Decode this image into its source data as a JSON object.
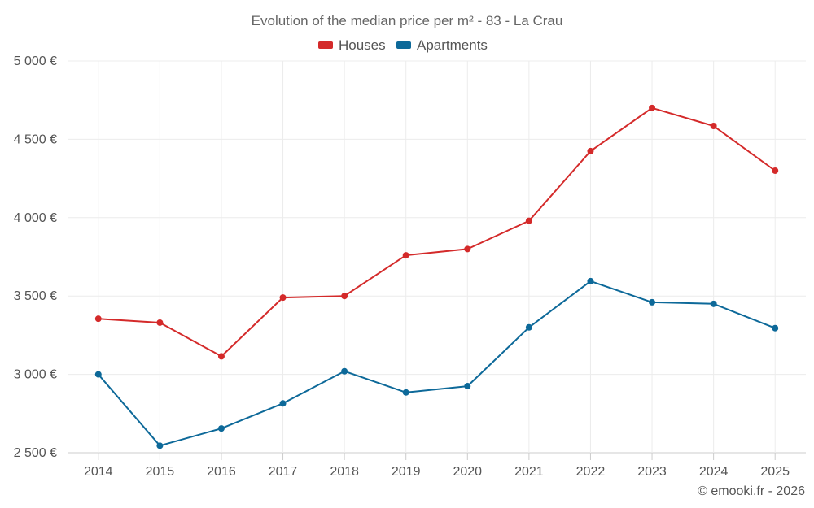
{
  "chart_data": {
    "type": "line",
    "title": "Evolution of the median price per m² - 83 - La Crau",
    "xlabel": "",
    "ylabel": "",
    "categories": [
      "2014",
      "2015",
      "2016",
      "2017",
      "2018",
      "2019",
      "2020",
      "2021",
      "2022",
      "2023",
      "2024",
      "2025"
    ],
    "ylim": [
      2500,
      5000
    ],
    "yticks": [
      2500,
      3000,
      3500,
      4000,
      4500,
      5000
    ],
    "ytick_labels": [
      "2 500 €",
      "3 000 €",
      "3 500 €",
      "4 000 €",
      "4 500 €",
      "5 000 €"
    ],
    "grid": true,
    "legend": "top-center",
    "series": [
      {
        "name": "Houses",
        "color": "#d42a2a",
        "values": [
          3355,
          3330,
          3115,
          3490,
          3500,
          3760,
          3800,
          3980,
          4425,
          4700,
          4585,
          4300
        ]
      },
      {
        "name": "Apartments",
        "color": "#0d6999",
        "values": [
          3000,
          2545,
          2655,
          2815,
          3020,
          2885,
          2925,
          3300,
          3595,
          3460,
          3450,
          3295
        ]
      }
    ],
    "credit": "© emooki.fr - 2026"
  }
}
